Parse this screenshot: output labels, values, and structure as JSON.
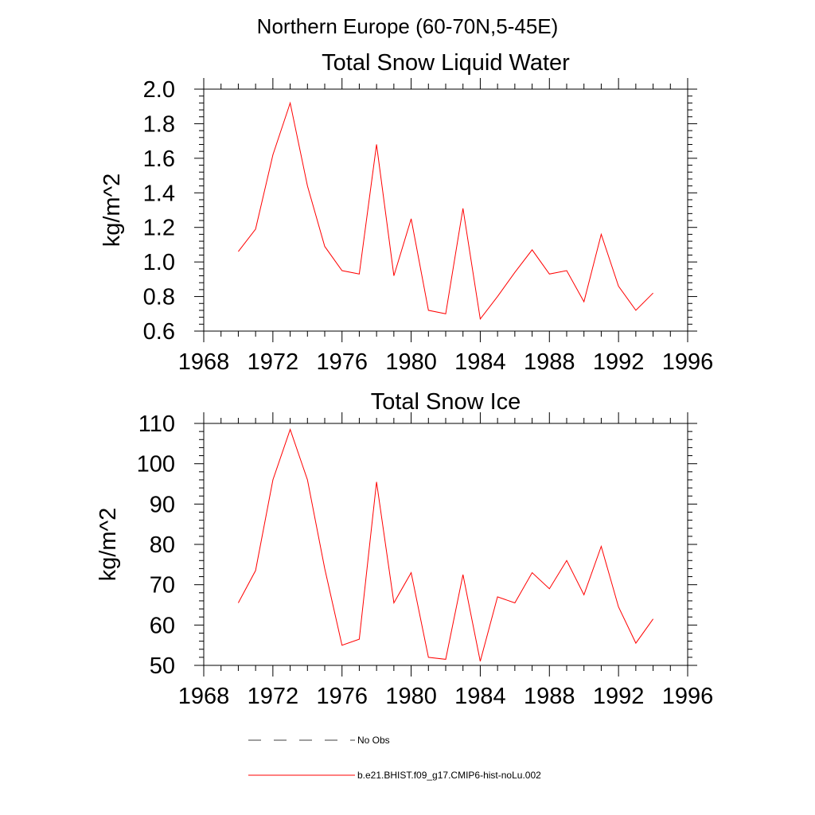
{
  "page": {
    "suptitle": "Northern Europe (60-70N,5-45E)"
  },
  "chart_data": [
    {
      "type": "line",
      "title": "Total Snow Liquid Water",
      "ylabel": "kg/m^2",
      "xlabel": "",
      "xlim": [
        1968,
        1996
      ],
      "ylim": [
        0.6,
        2.0
      ],
      "xticks": [
        "1968",
        "1972",
        "1976",
        "1980",
        "1984",
        "1988",
        "1992",
        "1996"
      ],
      "yticks": [
        "0.6",
        "0.8",
        "1.0",
        "1.2",
        "1.4",
        "1.6",
        "1.8",
        "2.0"
      ],
      "grid": false,
      "series": [
        {
          "name": "b.e21.BHIST.f09_g17.CMIP6-hist-noLu.002",
          "color": "#ff0000",
          "x": [
            1970,
            1971,
            1972,
            1973,
            1974,
            1975,
            1976,
            1977,
            1978,
            1979,
            1980,
            1981,
            1982,
            1983,
            1984,
            1985,
            1986,
            1987,
            1988,
            1989,
            1990,
            1991,
            1992,
            1993,
            1994
          ],
          "values": [
            1.06,
            1.19,
            1.62,
            1.92,
            1.44,
            1.09,
            0.95,
            0.93,
            1.68,
            0.92,
            1.25,
            0.72,
            0.7,
            1.31,
            0.67,
            0.8,
            0.94,
            1.07,
            0.93,
            0.95,
            0.77,
            1.16,
            0.86,
            0.72,
            0.82
          ]
        }
      ]
    },
    {
      "type": "line",
      "title": "Total Snow Ice",
      "ylabel": "kg/m^2",
      "xlabel": "",
      "xlim": [
        1968,
        1996
      ],
      "ylim": [
        50,
        110
      ],
      "xticks": [
        "1968",
        "1972",
        "1976",
        "1980",
        "1984",
        "1988",
        "1992",
        "1996"
      ],
      "yticks": [
        "50",
        "60",
        "70",
        "80",
        "90",
        "100",
        "110"
      ],
      "grid": false,
      "series": [
        {
          "name": "b.e21.BHIST.f09_g17.CMIP6-hist-noLu.002",
          "color": "#ff0000",
          "x": [
            1970,
            1971,
            1972,
            1973,
            1974,
            1975,
            1976,
            1977,
            1978,
            1979,
            1980,
            1981,
            1982,
            1983,
            1984,
            1985,
            1986,
            1987,
            1988,
            1989,
            1990,
            1991,
            1992,
            1993,
            1994
          ],
          "values": [
            65.5,
            73.5,
            96,
            108.5,
            96,
            74,
            55,
            56.5,
            95.5,
            65.5,
            73,
            52,
            51.5,
            72.5,
            51,
            67,
            65.5,
            73,
            69,
            76,
            67.5,
            79.5,
            64.5,
            55.5,
            61.5
          ]
        }
      ]
    }
  ],
  "legend": {
    "placement": "bottom",
    "items": [
      {
        "label": "No Obs",
        "style": "dashed",
        "color": "#000000"
      },
      {
        "label": "b.e21.BHIST.f09_g17.CMIP6-hist-noLu.002",
        "style": "solid",
        "color": "#ff0000"
      }
    ]
  }
}
